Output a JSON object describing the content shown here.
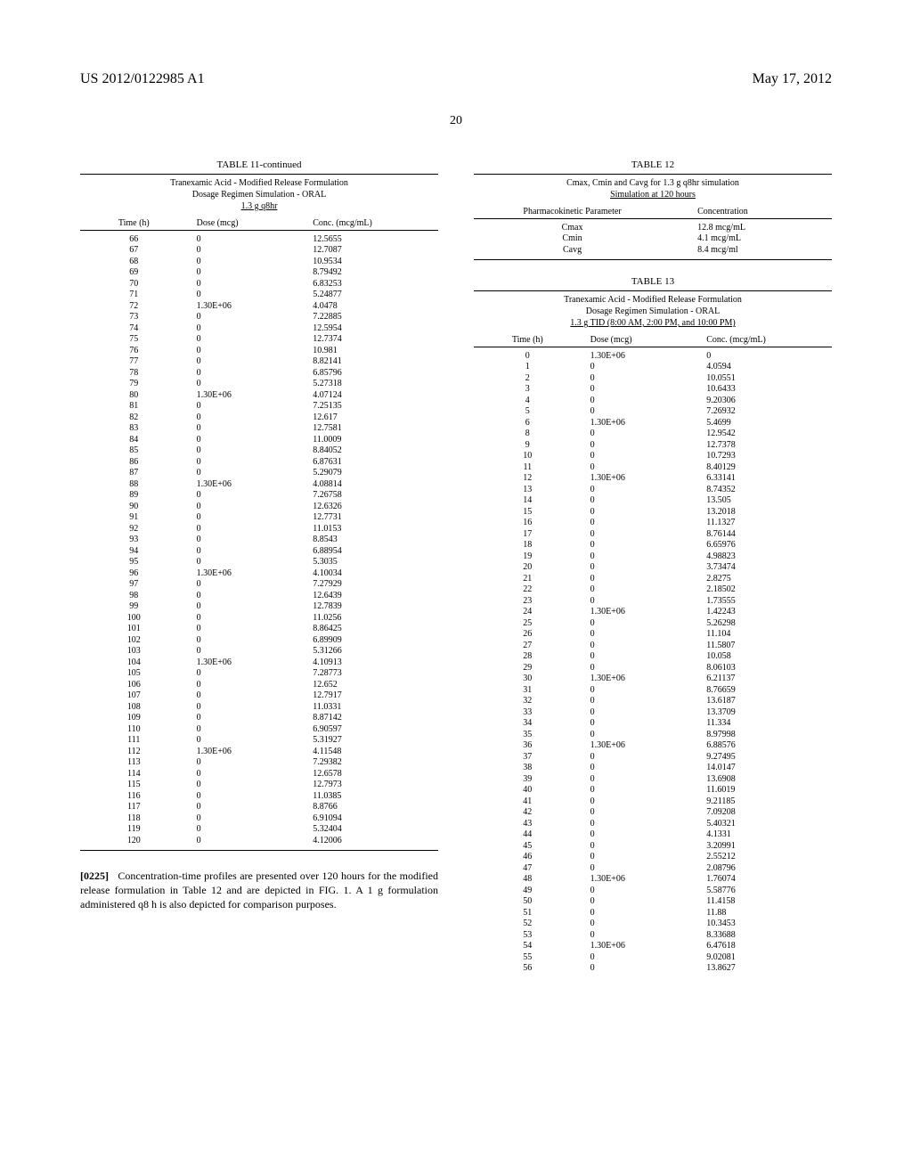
{
  "header": {
    "pub_number": "US 2012/0122985 A1",
    "pub_date": "May 17, 2012",
    "page_number": "20"
  },
  "table11": {
    "caption": "TABLE 11-continued",
    "subtitle1": "Tranexamic Acid - Modified Release Formulation",
    "subtitle2": "Dosage Regimen Simulation - ORAL",
    "subtitle3": "1.3 g q8hr",
    "col_headers": [
      "Time (h)",
      "Dose (mcg)",
      "Conc. (mcg/mL)"
    ],
    "rows": [
      [
        "66",
        "0",
        "12.5655"
      ],
      [
        "67",
        "0",
        "12.7087"
      ],
      [
        "68",
        "0",
        "10.9534"
      ],
      [
        "69",
        "0",
        "8.79492"
      ],
      [
        "70",
        "0",
        "6.83253"
      ],
      [
        "71",
        "0",
        "5.24877"
      ],
      [
        "72",
        "1.30E+06",
        "4.0478"
      ],
      [
        "73",
        "0",
        "7.22885"
      ],
      [
        "74",
        "0",
        "12.5954"
      ],
      [
        "75",
        "0",
        "12.7374"
      ],
      [
        "76",
        "0",
        "10.981"
      ],
      [
        "77",
        "0",
        "8.82141"
      ],
      [
        "78",
        "0",
        "6.85796"
      ],
      [
        "79",
        "0",
        "5.27318"
      ],
      [
        "80",
        "1.30E+06",
        "4.07124"
      ],
      [
        "81",
        "0",
        "7.25135"
      ],
      [
        "82",
        "0",
        "12.617"
      ],
      [
        "83",
        "0",
        "12.7581"
      ],
      [
        "84",
        "0",
        "11.0009"
      ],
      [
        "85",
        "0",
        "8.84052"
      ],
      [
        "86",
        "0",
        "6.87631"
      ],
      [
        "87",
        "0",
        "5.29079"
      ],
      [
        "88",
        "1.30E+06",
        "4.08814"
      ],
      [
        "89",
        "0",
        "7.26758"
      ],
      [
        "90",
        "0",
        "12.6326"
      ],
      [
        "91",
        "0",
        "12.7731"
      ],
      [
        "92",
        "0",
        "11.0153"
      ],
      [
        "93",
        "0",
        "8.8543"
      ],
      [
        "94",
        "0",
        "6.88954"
      ],
      [
        "95",
        "0",
        "5.3035"
      ],
      [
        "96",
        "1.30E+06",
        "4.10034"
      ],
      [
        "97",
        "0",
        "7.27929"
      ],
      [
        "98",
        "0",
        "12.6439"
      ],
      [
        "99",
        "0",
        "12.7839"
      ],
      [
        "100",
        "0",
        "11.0256"
      ],
      [
        "101",
        "0",
        "8.86425"
      ],
      [
        "102",
        "0",
        "6.89909"
      ],
      [
        "103",
        "0",
        "5.31266"
      ],
      [
        "104",
        "1.30E+06",
        "4.10913"
      ],
      [
        "105",
        "0",
        "7.28773"
      ],
      [
        "106",
        "0",
        "12.652"
      ],
      [
        "107",
        "0",
        "12.7917"
      ],
      [
        "108",
        "0",
        "11.0331"
      ],
      [
        "109",
        "0",
        "8.87142"
      ],
      [
        "110",
        "0",
        "6.90597"
      ],
      [
        "111",
        "0",
        "5.31927"
      ],
      [
        "112",
        "1.30E+06",
        "4.11548"
      ],
      [
        "113",
        "0",
        "7.29382"
      ],
      [
        "114",
        "0",
        "12.6578"
      ],
      [
        "115",
        "0",
        "12.7973"
      ],
      [
        "116",
        "0",
        "11.0385"
      ],
      [
        "117",
        "0",
        "8.8766"
      ],
      [
        "118",
        "0",
        "6.91094"
      ],
      [
        "119",
        "0",
        "5.32404"
      ],
      [
        "120",
        "0",
        "4.12006"
      ]
    ]
  },
  "paragraph": {
    "number": "[0225]",
    "text": "Concentration-time profiles are presented over 120 hours for the modified release formulation in Table 12 and are depicted in FIG. 1. A 1 g formulation administered q8 h is also depicted for comparison purposes."
  },
  "table12": {
    "caption": "TABLE 12",
    "subtitle1": "Cmax, Cmin and Cavg for 1.3 g q8hr simulation",
    "subtitle2": "Simulation at 120 hours",
    "col_headers": [
      "Pharmacokinetic Parameter",
      "Concentration"
    ],
    "rows": [
      [
        "Cmax",
        "12.8 mcg/mL"
      ],
      [
        "Cmin",
        "4.1 mcg/mL"
      ],
      [
        "Cavg",
        "8.4 mcg/ml"
      ]
    ]
  },
  "table13": {
    "caption": "TABLE 13",
    "subtitle1": "Tranexamic Acid - Modified Release Formulation",
    "subtitle2": "Dosage Regimen Simulation - ORAL",
    "subtitle3": "1.3 g TID (8:00 AM, 2:00 PM, and 10:00 PM)",
    "col_headers": [
      "Time (h)",
      "Dose (mcg)",
      "Conc. (mcg/mL)"
    ],
    "rows": [
      [
        "0",
        "1.30E+06",
        "0"
      ],
      [
        "1",
        "0",
        "4.0594"
      ],
      [
        "2",
        "0",
        "10.0551"
      ],
      [
        "3",
        "0",
        "10.6433"
      ],
      [
        "4",
        "0",
        "9.20306"
      ],
      [
        "5",
        "0",
        "7.26932"
      ],
      [
        "6",
        "1.30E+06",
        "5.4699"
      ],
      [
        "8",
        "0",
        "12.9542"
      ],
      [
        "9",
        "0",
        "12.7378"
      ],
      [
        "10",
        "0",
        "10.7293"
      ],
      [
        "11",
        "0",
        "8.40129"
      ],
      [
        "12",
        "1.30E+06",
        "6.33141"
      ],
      [
        "13",
        "0",
        "8.74352"
      ],
      [
        "14",
        "0",
        "13.505"
      ],
      [
        "15",
        "0",
        "13.2018"
      ],
      [
        "16",
        "0",
        "11.1327"
      ],
      [
        "17",
        "0",
        "8.76144"
      ],
      [
        "18",
        "0",
        "6.65976"
      ],
      [
        "19",
        "0",
        "4.98823"
      ],
      [
        "20",
        "0",
        "3.73474"
      ],
      [
        "21",
        "0",
        "2.8275"
      ],
      [
        "22",
        "0",
        "2.18502"
      ],
      [
        "23",
        "0",
        "1.73555"
      ],
      [
        "24",
        "1.30E+06",
        "1.42243"
      ],
      [
        "25",
        "0",
        "5.26298"
      ],
      [
        "26",
        "0",
        "11.104"
      ],
      [
        "27",
        "0",
        "11.5807"
      ],
      [
        "28",
        "0",
        "10.058"
      ],
      [
        "29",
        "0",
        "8.06103"
      ],
      [
        "30",
        "1.30E+06",
        "6.21137"
      ],
      [
        "31",
        "0",
        "8.76659"
      ],
      [
        "32",
        "0",
        "13.6187"
      ],
      [
        "33",
        "0",
        "13.3709"
      ],
      [
        "34",
        "0",
        "11.334"
      ],
      [
        "35",
        "0",
        "8.97998"
      ],
      [
        "36",
        "1.30E+06",
        "6.88576"
      ],
      [
        "37",
        "0",
        "9.27495"
      ],
      [
        "38",
        "0",
        "14.0147"
      ],
      [
        "39",
        "0",
        "13.6908"
      ],
      [
        "40",
        "0",
        "11.6019"
      ],
      [
        "41",
        "0",
        "9.21185"
      ],
      [
        "42",
        "0",
        "7.09208"
      ],
      [
        "43",
        "0",
        "5.40321"
      ],
      [
        "44",
        "0",
        "4.1331"
      ],
      [
        "45",
        "0",
        "3.20991"
      ],
      [
        "46",
        "0",
        "2.55212"
      ],
      [
        "47",
        "0",
        "2.08796"
      ],
      [
        "48",
        "1.30E+06",
        "1.76074"
      ],
      [
        "49",
        "0",
        "5.58776"
      ],
      [
        "50",
        "0",
        "11.4158"
      ],
      [
        "51",
        "0",
        "11.88"
      ],
      [
        "52",
        "0",
        "10.3453"
      ],
      [
        "53",
        "0",
        "8.33688"
      ],
      [
        "54",
        "1.30E+06",
        "6.47618"
      ],
      [
        "55",
        "0",
        "9.02081"
      ],
      [
        "56",
        "0",
        "13.8627"
      ]
    ]
  }
}
